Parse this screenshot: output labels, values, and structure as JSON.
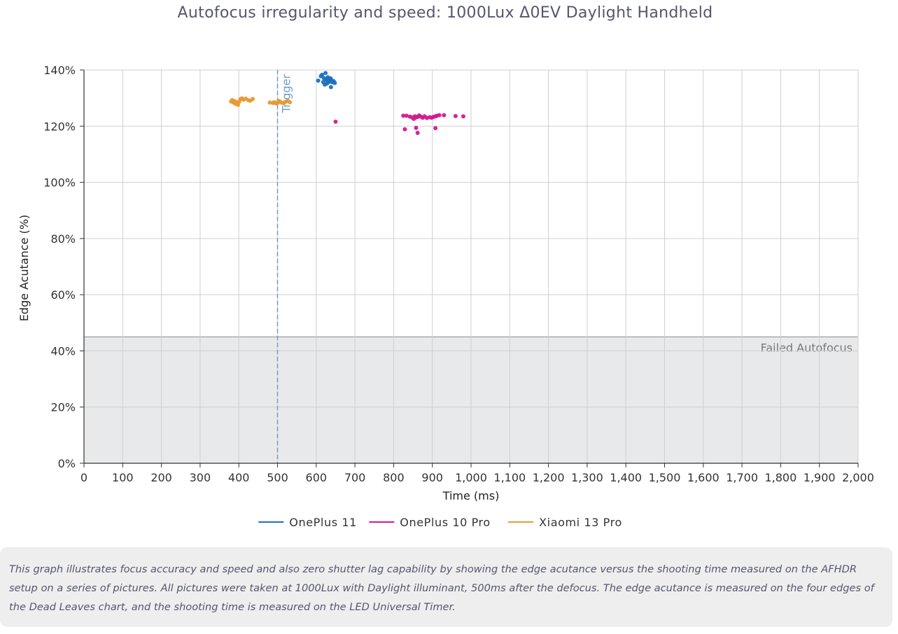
{
  "chart_data": {
    "type": "scatter",
    "title": "Autofocus irregularity and speed: 1000Lux Δ0EV Daylight Handheld",
    "xlabel": "Time (ms)",
    "ylabel": "Edge Acutance (%)",
    "xlim": [
      0,
      2000
    ],
    "ylim": [
      0,
      140
    ],
    "x_ticks": [
      0,
      100,
      200,
      300,
      400,
      500,
      600,
      700,
      800,
      900,
      1000,
      1100,
      1200,
      1300,
      1400,
      1500,
      1600,
      1700,
      1800,
      1900,
      2000
    ],
    "x_tick_labels": [
      "0",
      "100",
      "200",
      "300",
      "400",
      "500",
      "600",
      "700",
      "800",
      "900",
      "1,000",
      "1,100",
      "1,200",
      "1,300",
      "1,400",
      "1,500",
      "1,600",
      "1,700",
      "1,800",
      "1,900",
      "2,000"
    ],
    "y_ticks": [
      0,
      20,
      40,
      60,
      80,
      100,
      120,
      140
    ],
    "y_tick_labels": [
      "0%",
      "20%",
      "40%",
      "60%",
      "80%",
      "100%",
      "120%",
      "140%"
    ],
    "grid": true,
    "legend_position": "bottom-center",
    "annotations": {
      "failed_zone": {
        "label": "Failed Autofocus",
        "y_max": 45,
        "color": "#e8e9ea"
      },
      "trigger": {
        "label": "Trigger",
        "x": 500,
        "color": "#6f9cc8"
      }
    },
    "series": [
      {
        "name": "OnePlus 11",
        "color": "#1f6fbf",
        "points": [
          [
            605,
            136.2
          ],
          [
            612,
            137.8
          ],
          [
            615,
            138.3
          ],
          [
            618,
            135.7
          ],
          [
            620,
            137.1
          ],
          [
            622,
            134.8
          ],
          [
            624,
            138.9
          ],
          [
            626,
            136.5
          ],
          [
            628,
            135.2
          ],
          [
            630,
            137.4
          ],
          [
            632,
            136.1
          ],
          [
            634,
            135.8
          ],
          [
            636,
            136.9
          ],
          [
            638,
            133.9
          ],
          [
            640,
            136.3
          ],
          [
            642,
            135.6
          ],
          [
            645,
            136.0
          ],
          [
            648,
            135.4
          ],
          [
            625,
            136.7
          ],
          [
            631,
            135.9
          ],
          [
            637,
            137.0
          ]
        ]
      },
      {
        "name": "OnePlus 10 Pro",
        "color": "#d21a8f",
        "points": [
          [
            825,
            123.7
          ],
          [
            833,
            123.7
          ],
          [
            842,
            123.4
          ],
          [
            848,
            123.1
          ],
          [
            852,
            122.6
          ],
          [
            855,
            123.5
          ],
          [
            858,
            123.1
          ],
          [
            862,
            123.3
          ],
          [
            866,
            123.8
          ],
          [
            870,
            123.4
          ],
          [
            875,
            123.0
          ],
          [
            880,
            123.5
          ],
          [
            886,
            122.9
          ],
          [
            893,
            123.2
          ],
          [
            898,
            123.0
          ],
          [
            903,
            123.3
          ],
          [
            908,
            123.5
          ],
          [
            912,
            123.7
          ],
          [
            918,
            123.9
          ],
          [
            930,
            123.9
          ],
          [
            960,
            123.6
          ],
          [
            980,
            123.5
          ],
          [
            829,
            118.9
          ],
          [
            858,
            119.4
          ],
          [
            862,
            117.6
          ],
          [
            908,
            119.3
          ],
          [
            650,
            121.6
          ]
        ]
      },
      {
        "name": "Xiaomi 13 Pro",
        "color": "#e79a35",
        "points": [
          [
            380,
            128.8
          ],
          [
            383,
            129.3
          ],
          [
            386,
            128.4
          ],
          [
            389,
            128.9
          ],
          [
            392,
            127.9
          ],
          [
            395,
            128.5
          ],
          [
            398,
            127.6
          ],
          [
            401,
            128.7
          ],
          [
            404,
            129.6
          ],
          [
            408,
            129.9
          ],
          [
            412,
            129.4
          ],
          [
            418,
            129.8
          ],
          [
            425,
            129.2
          ],
          [
            430,
            129.1
          ],
          [
            436,
            129.7
          ],
          [
            480,
            128.4
          ],
          [
            488,
            128.3
          ],
          [
            492,
            128.5
          ],
          [
            496,
            128.1
          ],
          [
            500,
            128.3
          ],
          [
            503,
            129.0
          ],
          [
            506,
            128.7
          ],
          [
            510,
            128.4
          ],
          [
            515,
            128.2
          ],
          [
            520,
            128.6
          ],
          [
            526,
            129.0
          ],
          [
            532,
            128.5
          ]
        ]
      }
    ]
  },
  "caption": "This graph illustrates focus accuracy and speed and also zero shutter lag capability by showing the edge acutance versus the shooting time measured on the AFHDR setup on a series of pictures. All pictures were taken at 1000Lux with Daylight illuminant, 500ms after the defocus. The edge acutance is measured on the four edges of the Dead Leaves chart, and the shooting time is measured on the LED Universal Timer."
}
